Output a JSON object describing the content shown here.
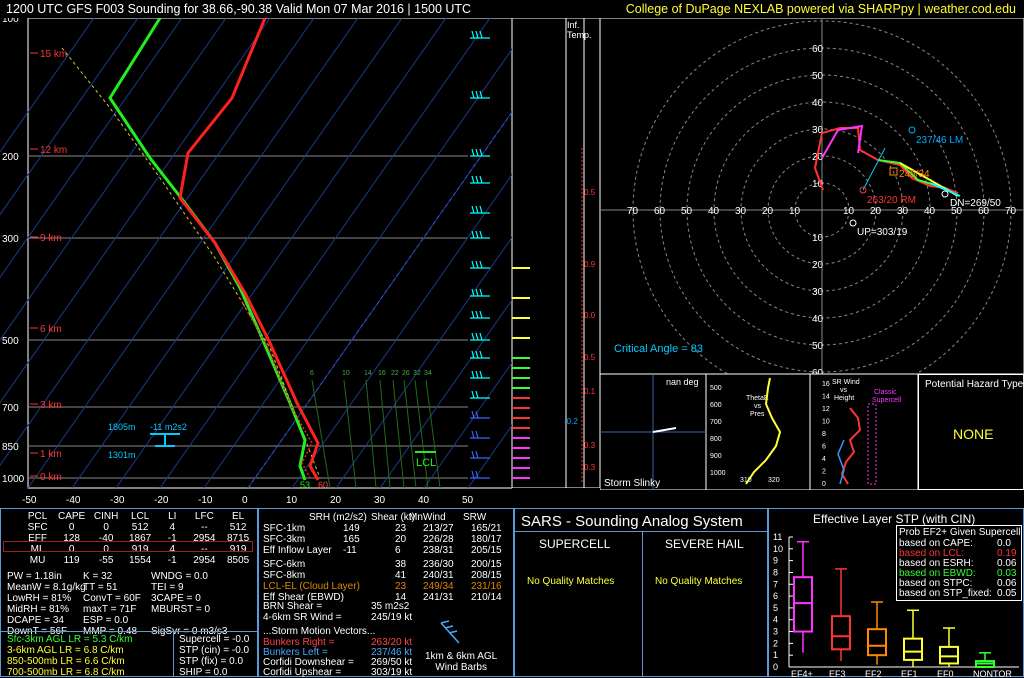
{
  "header": {
    "title": "1200 UTC GFS F003 Sounding for 38.66,-90.38 Valid  Mon 07 Mar 2016 | 1500 UTC",
    "credit": "College of DuPage NEXLAB powered via SHARPpy | weather.cod.edu"
  },
  "skewt": {
    "pressure_labels": [
      "100",
      "200",
      "300",
      "500",
      "700",
      "850",
      "1000"
    ],
    "height_labels": [
      "15 km",
      "12 km",
      "9 km",
      "6 km",
      "3 km",
      "1 km",
      "0 km"
    ],
    "temp_labels": [
      "-50",
      "-40",
      "-30",
      "-20",
      "-10",
      "0",
      "10",
      "20",
      "30",
      "40",
      "50"
    ],
    "lcl_label": "LCL",
    "dcape_label1": "1805m",
    "dcape_label2": "-11 m2s2",
    "dcape_label3": "1301m",
    "sfc_td": "53",
    "sfc_t": "60",
    "wetbulb_ticks": [
      "6",
      "10",
      "14",
      "16",
      "22",
      "26",
      "32",
      "34"
    ]
  },
  "inferred_temp": {
    "label": "Inf.\nTemp.",
    "values": [
      "0.5",
      "0.9",
      "0.0",
      "0.5",
      "0.1",
      "-0.2",
      "0.3",
      "0.3"
    ]
  },
  "hodograph": {
    "rings": [
      "10",
      "20",
      "30",
      "40",
      "50",
      "60"
    ],
    "x_labels": [
      "70",
      "60",
      "50",
      "40",
      "30",
      "20",
      "10",
      "10",
      "20",
      "30",
      "40",
      "50",
      "60",
      "70"
    ],
    "lm": "237/46 LM",
    "rm": "263/20 RM",
    "mean": "245/34",
    "dn": "DN=269/50",
    "up": "UP=303/19",
    "critical_angle": "Critical Angle = 83"
  },
  "storm_slinky": {
    "top": "nan deg",
    "bottom": "Storm Slinky"
  },
  "theta_e": {
    "title": "ThetaE\nvs\nPres",
    "ylabels": [
      "500",
      "600",
      "700",
      "800",
      "900",
      "1000"
    ],
    "xlabels": [
      "310",
      "320"
    ]
  },
  "srwind": {
    "title": "SR Wind\nvs\nHeight",
    "classic": "Classic\nSupercell",
    "ylabels": [
      "16",
      "14",
      "12",
      "10",
      "8",
      "6",
      "4",
      "2",
      "0"
    ]
  },
  "hazard": {
    "title": "Potential Hazard Type",
    "value": "NONE"
  },
  "parcels": {
    "headers": [
      "PCL",
      "CAPE",
      "CINH",
      "LCL",
      "LI",
      "LFC",
      "EL"
    ],
    "rows": [
      [
        "SFC",
        "0",
        "0",
        "512",
        "4",
        "--",
        "512"
      ],
      [
        "EFF",
        "128",
        "-40",
        "1867",
        "-1",
        "2954",
        "8715"
      ],
      [
        "ML",
        "0",
        "0",
        "919",
        "4",
        "--",
        "919"
      ],
      [
        "MU",
        "119",
        "-55",
        "1554",
        "-1",
        "2954",
        "8505"
      ]
    ]
  },
  "indices": {
    "col1": [
      "PW = 1.18in",
      "MeanW = 8.1g/kg",
      "LowRH = 81%",
      "MidRH = 81%",
      "DCAPE = 34",
      "DownT = 56F"
    ],
    "col2": [
      "K = 32",
      "TT = 51",
      "ConvT = 60F",
      "maxT = 71F",
      "ESP = 0.0",
      "MMP = 0.48"
    ],
    "col3": [
      "WNDG = 0.0",
      "TEI = 9",
      "3CAPE = 0",
      "MBURST = 0",
      "",
      "SigSvr = 0 m3/s3"
    ]
  },
  "lapse": [
    {
      "text": "Sfc-3km AGL LR = 5.3 C/km",
      "color": "#33ff33"
    },
    {
      "text": "3-6km AGL LR = 6.8 C/km",
      "color": "#ffff33"
    },
    {
      "text": "850-500mb LR = 6.6 C/km",
      "color": "#ffff33"
    },
    {
      "text": "700-500mb LR = 6.8 C/km",
      "color": "#ffff33"
    }
  ],
  "composite": [
    "Supercell = -0.0",
    "STP (cin) = -0.0",
    "STP (fix) = 0.0",
    "SHIP = 0.0"
  ],
  "kinematics": {
    "headers": [
      "SRH (m2/s2)",
      "Shear (kt)",
      "MnWind",
      "SRW"
    ],
    "rows": [
      [
        "SFC-1km",
        "149",
        "23",
        "213/27",
        "165/21"
      ],
      [
        "SFC-3km",
        "165",
        "20",
        "226/28",
        "180/17"
      ],
      [
        "Eff Inflow Layer",
        "-11",
        "6",
        "238/31",
        "205/15"
      ],
      [
        "SFC-6km",
        "",
        "38",
        "236/30",
        "200/15"
      ],
      [
        "SFC-8km",
        "",
        "41",
        "240/31",
        "208/15"
      ],
      [
        "LCL-EL (Cloud Layer)",
        "",
        "23",
        "249/34",
        "231/16"
      ],
      [
        "Eff Shear (EBWD)",
        "",
        "14",
        "241/31",
        "210/14"
      ]
    ],
    "brn_shear": "BRN Shear =",
    "brn_val": "35 m2s2",
    "srwind_4_6": "4-6km SR Wind =",
    "srwind_4_6_val": "245/19 kt",
    "storm_motion": "...Storm Motion Vectors...",
    "motions": [
      [
        "Bunkers Right =",
        "263/20 kt",
        "#ff4444"
      ],
      [
        "Bunkers Left =",
        "237/46 kt",
        "#44aaff"
      ],
      [
        "Corfidi Downshear =",
        "269/50 kt",
        "#ffffff"
      ],
      [
        "Corfidi Upshear =",
        "303/19 kt",
        "#ffffff"
      ]
    ],
    "barb_label": "1km & 6km AGL\nWind Barbs"
  },
  "sars": {
    "title": "SARS - Sounding Analog System",
    "supercell": "SUPERCELL",
    "hail": "SEVERE HAIL",
    "sc_match": "No Quality Matches",
    "hail_match": "No Quality Matches"
  },
  "stp": {
    "title": "Effective Layer STP (with CIN)",
    "prob_title": "Prob EF2+ Given Supercell",
    "prob_rows": [
      [
        "based on CAPE:",
        "0.0",
        "#ffffff"
      ],
      [
        "based on LCL:",
        "0.19",
        "#ff3333"
      ],
      [
        "based on ESRH:",
        "0.06",
        "#ffffff"
      ],
      [
        "based on EBWD:",
        "0.03",
        "#33ff33"
      ],
      [
        "based on STPC:",
        "0.06",
        "#ffffff"
      ],
      [
        "based on STP_fixed:",
        "0.05",
        "#ffffff"
      ]
    ],
    "y_labels": [
      "11",
      "10",
      "9",
      "8",
      "7",
      "6",
      "5",
      "4",
      "3",
      "2",
      "1",
      "0"
    ],
    "categories": [
      "EF4+",
      "EF3",
      "EF2",
      "EF1",
      "EF0",
      "NONTOR"
    ]
  },
  "chart_data": {
    "type": "box",
    "title": "Effective Layer STP (with CIN)",
    "categories": [
      "EF4+",
      "EF3",
      "EF2",
      "EF1",
      "EF0",
      "NONTOR"
    ],
    "ylim": [
      0,
      11
    ],
    "boxes": [
      {
        "name": "EF4+",
        "whisker_low": 1.2,
        "q1": 3.0,
        "median": 5.4,
        "q3": 7.6,
        "whisker_high": 10.6,
        "color": "#ff33ff"
      },
      {
        "name": "EF3",
        "whisker_low": 0.5,
        "q1": 1.5,
        "median": 2.6,
        "q3": 4.3,
        "whisker_high": 8.3,
        "color": "#ff3333"
      },
      {
        "name": "EF2",
        "whisker_low": 0.2,
        "q1": 1.0,
        "median": 1.8,
        "q3": 3.2,
        "whisker_high": 5.5,
        "color": "#ff8800"
      },
      {
        "name": "EF1",
        "whisker_low": 0.0,
        "q1": 0.6,
        "median": 1.3,
        "q3": 2.4,
        "whisker_high": 4.8,
        "color": "#ffff33"
      },
      {
        "name": "EF0",
        "whisker_low": 0.0,
        "q1": 0.3,
        "median": 0.9,
        "q3": 1.7,
        "whisker_high": 3.3,
        "color": "#ffff33"
      },
      {
        "name": "NONTOR",
        "whisker_low": 0.0,
        "q1": 0.0,
        "median": 0.3,
        "q3": 0.5,
        "whisker_high": 1.2,
        "color": "#33ff33"
      }
    ]
  },
  "colors": {
    "temp": "#ff2020",
    "dew": "#22ee22",
    "panel_border": "#5a9ad6",
    "wetbulb": "#00ffff"
  }
}
